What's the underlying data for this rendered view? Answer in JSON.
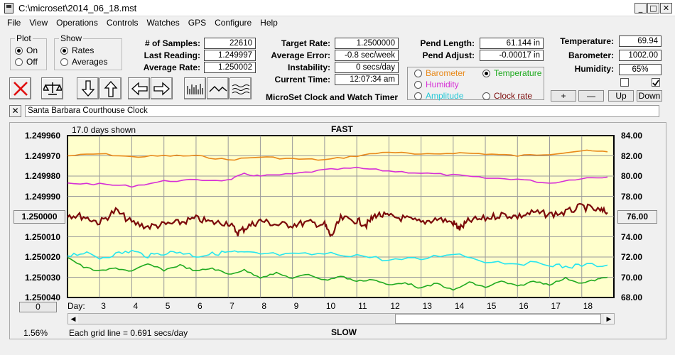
{
  "window": {
    "title": "C:\\microset\\2014_06_18.mst"
  },
  "menu": [
    "File",
    "View",
    "Operations",
    "Controls",
    "Watches",
    "GPS",
    "Configure",
    "Help"
  ],
  "plot_group": {
    "legend": "Plot",
    "on_label": "On",
    "off_label": "Off",
    "selected": "On"
  },
  "show_group": {
    "legend": "Show",
    "rates_label": "Rates",
    "averages_label": "Averages",
    "selected": "Rates"
  },
  "stats": {
    "samples_label": "# of Samples:",
    "samples": "22610",
    "last_label": "Last Reading:",
    "last": "1.249997",
    "avg_label": "Average Rate:",
    "avg": "1.250002",
    "target_label": "Target Rate:",
    "target": "1.2500000",
    "avgerr_label": "Average Error:",
    "avgerr": "-0.8 sec/week",
    "instab_label": "Instability:",
    "instab": "0 secs/day",
    "time_label": "Current Time:",
    "time": "12:07:34 am",
    "pendlen_label": "Pend Length:",
    "pendlen": "61.144 in",
    "pendadj_label": "Pend Adjust:",
    "pendadj": "-0.00017 in",
    "temp_label": "Temperature:",
    "temp": "69.94",
    "baro_label": "Barometer:",
    "baro": "1002.00",
    "hum_label": "Humidity:",
    "hum": "65%"
  },
  "app_caption": "MicroSet Clock and Watch Timer",
  "aux_select": {
    "barometer": "Barometer",
    "temperature": "Temperature",
    "humidity": "Humidity",
    "amplitude": "Amplitude",
    "clockrate": "Clock rate",
    "selected": "Temperature"
  },
  "scale_buttons": {
    "plus": "+",
    "minus": "—",
    "up": "Up",
    "down": "Down"
  },
  "clock_name": "Santa Barbara Courthouse Clock",
  "chart_labels": {
    "days_shown": "17.0 days shown",
    "fast": "FAST",
    "slow": "SLOW",
    "grid_note": "Each grid line = 0.691 secs/day",
    "percent": "1.56%",
    "day_label": "Day:",
    "center_left": "1.250000",
    "center_right": "76.00",
    "scroll_value": "0"
  },
  "colors": {
    "plot_bg": "#ffffcc",
    "rate": "#7b0a0a",
    "barometer": "#e8891a",
    "humidity": "#d62fd6",
    "amplitude": "#26e5ef",
    "temperature": "#1faa1f",
    "grid": "#9a9a9a"
  },
  "chart_data": {
    "type": "line",
    "x_label": "Day",
    "xlim": [
      2.0,
      19.0
    ],
    "x_ticks": [
      3,
      4,
      5,
      6,
      7,
      8,
      9,
      10,
      11,
      12,
      13,
      14,
      15,
      16,
      17,
      18
    ],
    "y_left_ticks": [
      "1.249960",
      "1.249970",
      "1.249980",
      "1.249990",
      "1.250000",
      "1.250010",
      "1.250020",
      "1.250030",
      "1.250040"
    ],
    "y_left_range": [
      1.24996,
      1.25004
    ],
    "y_left_inverted": true,
    "y_right_ticks": [
      "84.00",
      "82.00",
      "80.00",
      "78.00",
      "76.00",
      "74.00",
      "72.00",
      "70.00",
      "68.00"
    ],
    "y_right_range": [
      68,
      84
    ],
    "series": [
      {
        "key": "barometer",
        "x": [
          2.0,
          3,
          4,
          5,
          6,
          7,
          8,
          9,
          10,
          11,
          12,
          13,
          14,
          15,
          16,
          17,
          18,
          18.8
        ],
        "y": [
          82.0,
          82.2,
          81.9,
          82.0,
          82.0,
          81.6,
          81.9,
          81.7,
          81.6,
          82.0,
          82.4,
          82.1,
          82.3,
          82.2,
          82.0,
          82.2,
          82.5,
          82.4
        ]
      },
      {
        "key": "humidity",
        "x": [
          2.0,
          3,
          4,
          5,
          6,
          7,
          7.5,
          8,
          9,
          10,
          11,
          12,
          13,
          14,
          15,
          16,
          17,
          18,
          18.8
        ],
        "y": [
          79.3,
          79.2,
          79.0,
          79.5,
          79.6,
          79.6,
          80.2,
          80.0,
          80.2,
          80.6,
          80.8,
          80.5,
          80.3,
          80.1,
          79.8,
          79.7,
          79.3,
          79.8,
          79.9
        ]
      },
      {
        "key": "rate",
        "x": [
          2.0,
          2.5,
          3,
          3.5,
          4,
          4.5,
          5,
          5.5,
          6,
          6.5,
          7,
          7.3,
          7.6,
          8,
          8.5,
          9,
          9.5,
          10,
          10.2,
          10.5,
          11,
          11.3,
          11.6,
          12,
          12.5,
          13,
          13.5,
          14,
          14.2,
          14.5,
          15,
          15.5,
          16,
          16.5,
          17,
          17.5,
          18,
          18.5,
          18.8
        ],
        "y": [
          1.249999,
          1.25,
          1.250003,
          1.249997,
          1.250003,
          1.250005,
          1.250004,
          1.250003,
          1.250001,
          1.250003,
          1.250003,
          1.250008,
          1.250005,
          1.250002,
          1.250004,
          1.250004,
          1.250003,
          1.250004,
          1.25001,
          1.250001,
          1.250002,
          1.250004,
          1.249999,
          1.25,
          1.250001,
          1.250003,
          1.250001,
          1.250003,
          1.250006,
          1.250002,
          1.250001,
          1.249999,
          1.25,
          1.249998,
          1.249999,
          1.249998,
          1.249995,
          1.249997,
          1.249998
        ]
      },
      {
        "key": "amplitude",
        "x": [
          2.0,
          2.5,
          3,
          3.5,
          4,
          4.5,
          5,
          5.5,
          6,
          6.5,
          7,
          7.5,
          8,
          9,
          10,
          11,
          12,
          13,
          14,
          15,
          16,
          17,
          17.5,
          18,
          18.8
        ],
        "y": [
          72.2,
          72.4,
          71.9,
          72.3,
          72.6,
          72.1,
          72.4,
          72.5,
          72.1,
          72.3,
          72.5,
          72.4,
          72.3,
          72.2,
          72.3,
          72.2,
          71.7,
          71.8,
          72.4,
          71.6,
          71.4,
          71.3,
          71.0,
          71.2,
          71.2
        ]
      },
      {
        "key": "temperature",
        "x": [
          2.0,
          2.5,
          3,
          3.5,
          4,
          4.5,
          5,
          5.5,
          6,
          6.5,
          7,
          7.5,
          8,
          8.5,
          9,
          9.5,
          10,
          10.5,
          11,
          11.5,
          12,
          12.5,
          13,
          13.5,
          14,
          14.5,
          15,
          15.5,
          16,
          16.5,
          17,
          17.5,
          18,
          18.5,
          18.8
        ],
        "y": [
          72.0,
          71.0,
          70.6,
          70.9,
          70.6,
          71.3,
          70.7,
          71.2,
          70.6,
          70.9,
          70.3,
          70.7,
          70.0,
          70.4,
          69.9,
          70.3,
          69.7,
          70.1,
          69.6,
          69.8,
          69.2,
          69.5,
          68.9,
          69.4,
          68.7,
          69.5,
          69.0,
          69.6,
          69.1,
          69.6,
          69.3,
          69.9,
          69.4,
          69.8,
          70.0
        ]
      }
    ]
  }
}
